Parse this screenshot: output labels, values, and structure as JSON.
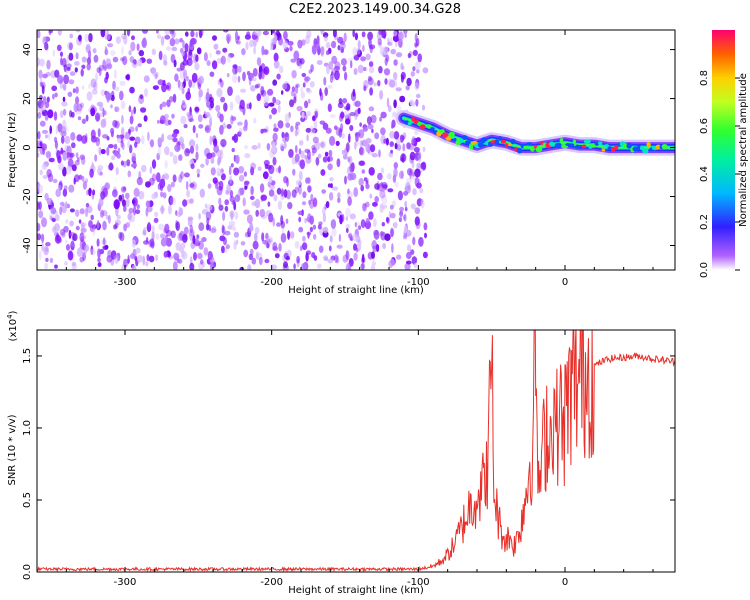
{
  "title": "C2E2.2023.149.00.34.G28",
  "chart_data": [
    {
      "type": "heatmap",
      "title": "C2E2.2023.149.00.34.G28",
      "xlabel": "Height of straight line (km)",
      "ylabel": "Frequency (Hz)",
      "xlim": [
        -360,
        75
      ],
      "ylim": [
        -50,
        48
      ],
      "xticks": [
        -300,
        -200,
        -100,
        0
      ],
      "yticks": [
        -40,
        -20,
        0,
        20,
        40
      ],
      "noise_region_x": [
        -360,
        -95
      ],
      "signal_trace": {
        "x": [
          -110,
          -100,
          -90,
          -80,
          -70,
          -60,
          -50,
          -40,
          -30,
          -20,
          -10,
          0,
          10,
          20,
          30,
          40,
          50,
          60,
          75
        ],
        "y": [
          12,
          10,
          8,
          5,
          3,
          1,
          3,
          2,
          0,
          0,
          1,
          2,
          1,
          1,
          0,
          0,
          0,
          0,
          0
        ]
      },
      "colorbar": {
        "label": "Normalized spectral amplitude",
        "range": [
          0.0,
          1.0
        ],
        "ticks": [
          "0.0",
          "0.2",
          "0.4",
          "0.6",
          "0.8"
        ]
      }
    },
    {
      "type": "line",
      "xlabel": "Height of straight line (km)",
      "ylabel": "SNR (10 * v/v)",
      "yscale_label": "(x10",
      "yscale_exp": "4",
      "yscale_close": ")",
      "xlim": [
        -360,
        75
      ],
      "ylim": [
        0,
        1.68
      ],
      "xticks": [
        -300,
        -200,
        -100,
        0
      ],
      "yticks": [
        "0.0",
        "0.5",
        "1.0",
        "1.5"
      ],
      "color": "#e8302a",
      "series": {
        "x": [
          -360,
          -100,
          -90,
          -85,
          -80,
          -75,
          -70,
          -65,
          -60,
          -55,
          -52,
          -50,
          -49,
          -48,
          -46,
          -44,
          -42,
          -40,
          -38,
          -35,
          -32,
          -30,
          -28,
          -26,
          -24,
          -22,
          -20,
          -19,
          -18,
          -16,
          -14,
          -12,
          -10,
          -8,
          -6,
          -4,
          -2,
          0,
          2,
          4,
          6,
          8,
          10,
          15,
          20,
          25,
          30,
          40,
          50,
          60,
          75
        ],
        "y": [
          0.02,
          0.02,
          0.04,
          0.07,
          0.12,
          0.2,
          0.32,
          0.45,
          0.55,
          0.6,
          0.85,
          1.68,
          0.75,
          0.55,
          0.4,
          0.3,
          0.25,
          0.22,
          0.25,
          0.18,
          0.25,
          0.35,
          0.45,
          0.6,
          0.75,
          0.9,
          1.68,
          0.95,
          0.55,
          0.75,
          0.9,
          1.05,
          0.9,
          1.2,
          0.95,
          1.15,
          1.0,
          1.05,
          1.2,
          1.25,
          1.3,
          1.32,
          1.35,
          1.4,
          1.43,
          1.46,
          1.48,
          1.49,
          1.5,
          1.48,
          1.46
        ]
      }
    }
  ]
}
